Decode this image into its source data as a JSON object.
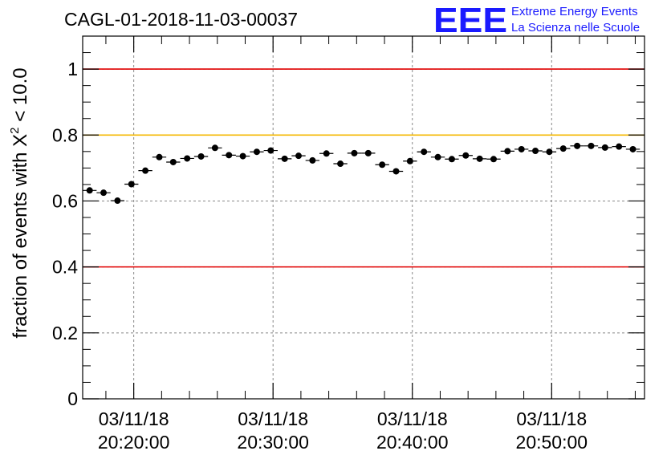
{
  "header": {
    "run_title": "CAGL-01-2018-11-03-00037",
    "logo_mark": "EEE",
    "logo_line1": "Extreme Energy Events",
    "logo_line2": "La Scienza nelle Scuole"
  },
  "colors": {
    "limit_red": "#e00000",
    "limit_yellow": "#f5b800",
    "logo_blue": "#1a1aff",
    "points": "#000000"
  },
  "chart_data": {
    "type": "scatter",
    "title": "CAGL-01-2018-11-03-00037",
    "ylabel_prefix": "fraction of events with ",
    "ylabel_symbol": "Χ",
    "ylabel_sup": "2",
    "ylabel_suffix": " < 10.0",
    "xlabel": "",
    "x_axis": "time",
    "xlim": [
      "03/11/18 20:16:20",
      "03/11/18 20:56:40"
    ],
    "ylim": [
      0,
      1.1
    ],
    "grid": true,
    "ytick_labels": [
      {
        "value": 0,
        "label": "0"
      },
      {
        "value": 0.2,
        "label": "0.2"
      },
      {
        "value": 0.4,
        "label": "0.4"
      },
      {
        "value": 0.6,
        "label": "0.6"
      },
      {
        "value": 0.8,
        "label": "0.8"
      },
      {
        "value": 1.0,
        "label": "1"
      }
    ],
    "xtick_labels": [
      {
        "time": "03/11/18 20:20:00",
        "date": "03/11/18",
        "clock": "20:20:00"
      },
      {
        "time": "03/11/18 20:30:00",
        "date": "03/11/18",
        "clock": "20:30:00"
      },
      {
        "time": "03/11/18 20:40:00",
        "date": "03/11/18",
        "clock": "20:40:00"
      },
      {
        "time": "03/11/18 20:50:00",
        "date": "03/11/18",
        "clock": "20:50:00"
      }
    ],
    "reference_lines": [
      {
        "y": 1.0,
        "color": "#e00000"
      },
      {
        "y": 0.8,
        "color": "#f5b800"
      },
      {
        "y": 0.4,
        "color": "#e00000"
      }
    ],
    "bin_width": "00:01:00",
    "series": [
      {
        "x": [
          "20:16:50",
          "20:17:50",
          "20:18:50",
          "20:19:50",
          "20:20:50",
          "20:21:50",
          "20:22:50",
          "20:23:50",
          "20:24:50",
          "20:25:50",
          "20:26:50",
          "20:27:50",
          "20:28:50",
          "20:29:50",
          "20:30:50",
          "20:31:50",
          "20:32:50",
          "20:33:50",
          "20:34:50",
          "20:35:50",
          "20:36:50",
          "20:37:50",
          "20:38:50",
          "20:39:50",
          "20:40:50",
          "20:41:50",
          "20:42:50",
          "20:43:50",
          "20:44:50",
          "20:45:50",
          "20:46:50",
          "20:47:50",
          "20:48:50",
          "20:49:50",
          "20:50:50",
          "20:51:50",
          "20:52:50",
          "20:53:50",
          "20:54:50",
          "20:55:50"
        ],
        "y": [
          0.632,
          0.625,
          0.601,
          0.651,
          0.692,
          0.733,
          0.718,
          0.729,
          0.735,
          0.761,
          0.739,
          0.736,
          0.749,
          0.753,
          0.728,
          0.737,
          0.723,
          0.744,
          0.713,
          0.745,
          0.745,
          0.71,
          0.69,
          0.721,
          0.749,
          0.733,
          0.727,
          0.738,
          0.728,
          0.727,
          0.751,
          0.757,
          0.752,
          0.749,
          0.759,
          0.767,
          0.767,
          0.762,
          0.765,
          0.757
        ],
        "yerr": 0.009
      }
    ]
  }
}
